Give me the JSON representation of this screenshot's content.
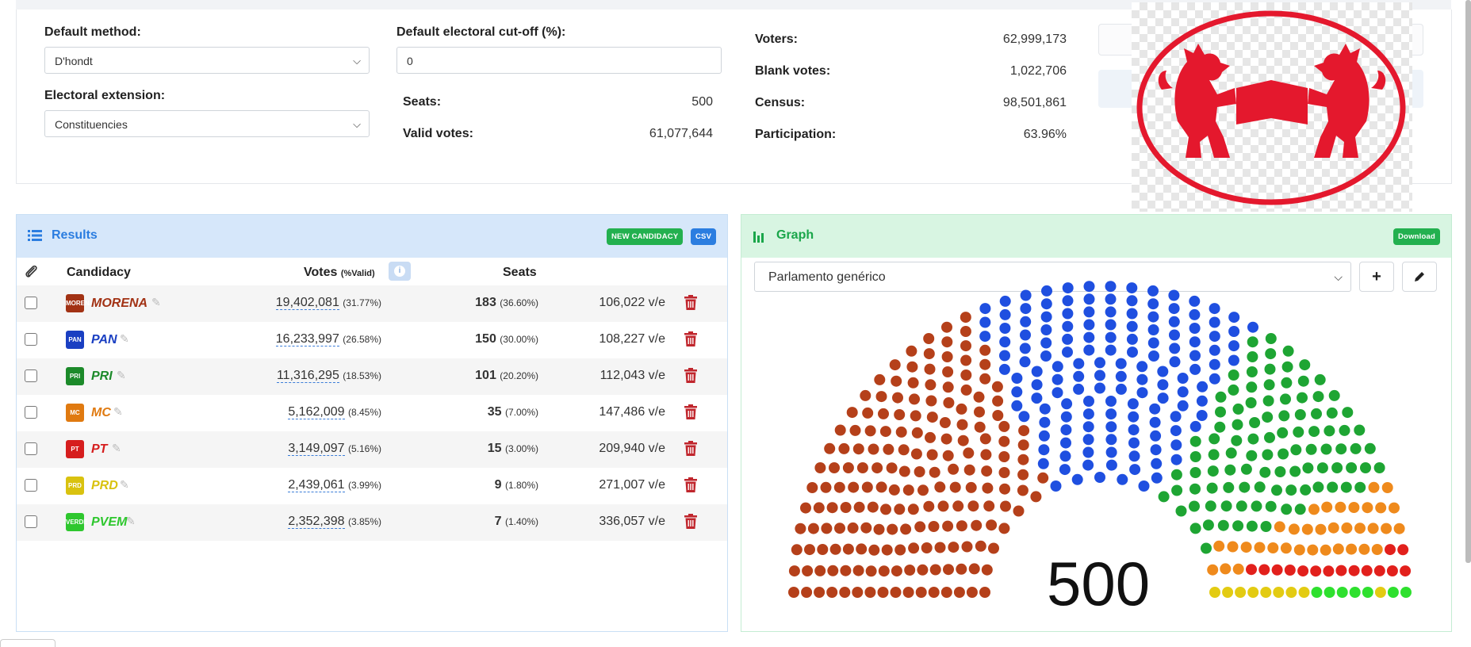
{
  "settings": {
    "method_label": "Default method:",
    "method_value": "D'hondt",
    "cutoff_label": "Default electoral cut-off (%):",
    "cutoff_value": "0",
    "extension_label": "Electoral extension:",
    "extension_value": "Constituencies",
    "seats_label": "Seats:",
    "seats_value": "500",
    "valid_label": "Valid votes:",
    "valid_value": "61,077,644",
    "voters_label": "Voters:",
    "voters_value": "62,999,173",
    "blank_label": "Blank votes:",
    "blank_value": "1,022,706",
    "census_label": "Census:",
    "census_value": "98,501,861",
    "participation_label": "Participation:",
    "participation_value": "63.96%"
  },
  "results": {
    "title": "Results",
    "new_candidacy_label": "NEW CANDIDACY",
    "csv_label": "CSV",
    "col_candidacy": "Candidacy",
    "col_votes": "Votes",
    "col_votes_sub": "(%Valid)",
    "col_seats": "Seats",
    "rows": [
      {
        "name": "MORENA",
        "votes": "19,402,081",
        "votes_pct": "(31.77%)",
        "seats": "183",
        "seats_pct": "(36.60%)",
        "ratio": "106,022 v/e",
        "color": "#a23214",
        "logo_text": "MORENA"
      },
      {
        "name": "PAN",
        "votes": "16,233,997",
        "votes_pct": "(26.58%)",
        "seats": "150",
        "seats_pct": "(30.00%)",
        "ratio": "108,227 v/e",
        "color": "#1a3fc2",
        "logo_text": "PAN"
      },
      {
        "name": "PRI",
        "votes": "11,316,295",
        "votes_pct": "(18.53%)",
        "seats": "101",
        "seats_pct": "(20.20%)",
        "ratio": "112,043 v/e",
        "color": "#1c8a2a",
        "logo_text": "PRI"
      },
      {
        "name": "MC",
        "votes": "5,162,009",
        "votes_pct": "(8.45%)",
        "seats": "35",
        "seats_pct": "(7.00%)",
        "ratio": "147,486 v/e",
        "color": "#e07a10",
        "logo_text": "MC"
      },
      {
        "name": "PT",
        "votes": "3,149,097",
        "votes_pct": "(5.16%)",
        "seats": "15",
        "seats_pct": "(3.00%)",
        "ratio": "209,940 v/e",
        "color": "#d61e1e",
        "logo_text": "PT"
      },
      {
        "name": "PRD",
        "votes": "2,439,061",
        "votes_pct": "(3.99%)",
        "seats": "9",
        "seats_pct": "(1.80%)",
        "ratio": "271,007 v/e",
        "color": "#d9c20f",
        "logo_text": "PRD"
      },
      {
        "name": "PVEM",
        "votes": "2,352,398",
        "votes_pct": "(3.85%)",
        "seats": "7",
        "seats_pct": "(1.40%)",
        "ratio": "336,057 v/e",
        "color": "#2ec72e",
        "logo_text": "VERDE"
      }
    ]
  },
  "graph": {
    "title": "Graph",
    "download_label": "Download",
    "chart_select_value": "Parlamento genérico",
    "add_icon": "plus-icon",
    "edit_icon": "pencil-icon",
    "total_seats": "500"
  },
  "chart_data": {
    "type": "parliament",
    "total": 500,
    "series": [
      {
        "name": "MORENA",
        "value": 183,
        "color": "#b5401a"
      },
      {
        "name": "PAN",
        "value": 150,
        "color": "#1f4fe0"
      },
      {
        "name": "PRI",
        "value": 101,
        "color": "#1ea533"
      },
      {
        "name": "MC",
        "value": 35,
        "color": "#ef8a1c"
      },
      {
        "name": "PT",
        "value": 15,
        "color": "#e2201c"
      },
      {
        "name": "PRD",
        "value": 9,
        "color": "#e3cb12"
      },
      {
        "name": "PVEM",
        "value": 7,
        "color": "#2ee02e"
      }
    ]
  },
  "colors": {
    "results_header": "#d6e7fa",
    "graph_header": "#d8f5e2",
    "results_title": "#2b7de0",
    "graph_title": "#1aa64a",
    "badge_green": "#23b04f",
    "badge_blue": "#2b7de0",
    "logo_red": "#e4182d"
  }
}
